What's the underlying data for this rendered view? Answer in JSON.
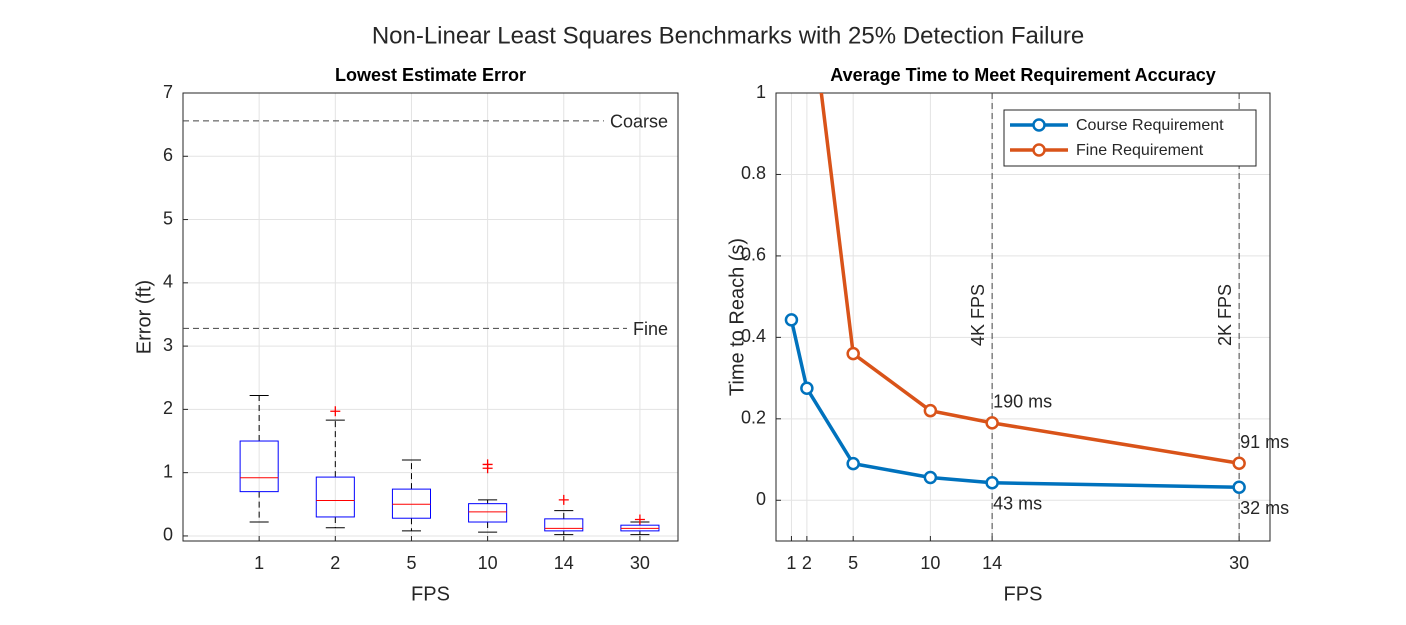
{
  "title": "Non-Linear Least Squares Benchmarks with 25% Detection Failure",
  "chart_data": [
    {
      "type": "box",
      "title": "Lowest Estimate Error",
      "x_label": "FPS",
      "y_label": "Error (ft)",
      "categories": [
        "1",
        "2",
        "5",
        "10",
        "14",
        "30"
      ],
      "boxes": [
        {
          "whisker_low": 0.22,
          "q1": 0.7,
          "median": 0.92,
          "q3": 1.5,
          "whisker_high": 2.22,
          "outliers": []
        },
        {
          "whisker_low": 0.13,
          "q1": 0.3,
          "median": 0.56,
          "q3": 0.93,
          "whisker_high": 1.83,
          "outliers": [
            1.97
          ]
        },
        {
          "whisker_low": 0.08,
          "q1": 0.28,
          "median": 0.5,
          "q3": 0.74,
          "whisker_high": 1.2,
          "outliers": []
        },
        {
          "whisker_low": 0.06,
          "q1": 0.22,
          "median": 0.38,
          "q3": 0.51,
          "whisker_high": 0.57,
          "outliers": [
            1.07,
            1.13
          ]
        },
        {
          "whisker_low": 0.02,
          "q1": 0.08,
          "median": 0.12,
          "q3": 0.27,
          "whisker_high": 0.4,
          "outliers": [
            0.57
          ]
        },
        {
          "whisker_low": 0.02,
          "q1": 0.08,
          "median": 0.12,
          "q3": 0.17,
          "whisker_high": 0.22,
          "outliers": [
            0.26
          ]
        }
      ],
      "box_color": "#0000ff",
      "median_color": "#ff0000",
      "whisker_color": "#000000",
      "outlier_color": "#ff0000",
      "hlines": [
        {
          "value": 6.56,
          "label": "Coarse"
        },
        {
          "value": 3.28,
          "label": "Fine"
        }
      ],
      "ylim": [
        -0.08,
        7
      ],
      "yticks": [
        0,
        1,
        2,
        3,
        4,
        5,
        6,
        7
      ],
      "grid": true
    },
    {
      "type": "line",
      "title": "Average Time to Meet Requirement Accuracy",
      "x_label": "FPS",
      "y_label": "Time to Reach (s)",
      "x": [
        1,
        2,
        5,
        10,
        14,
        30
      ],
      "series": [
        {
          "name": "Course Requirement",
          "color": "#0072BD",
          "values": [
            0.443,
            0.275,
            0.09,
            0.056,
            0.043,
            0.032
          ],
          "value_labels": [
            null,
            null,
            null,
            null,
            "43 ms",
            "32 ms"
          ]
        },
        {
          "name": "Fine Requirement",
          "color": "#D95319",
          "values": [
            null,
            1.29,
            0.36,
            0.22,
            0.19,
            0.091
          ],
          "value_labels": [
            null,
            null,
            null,
            null,
            "190 ms",
            "91 ms"
          ]
        }
      ],
      "vlines": [
        {
          "value": 14,
          "label": "4K FPS"
        },
        {
          "value": 30,
          "label": "2K FPS"
        }
      ],
      "xlim": [
        0,
        32
      ],
      "xticks": [
        1,
        2,
        5,
        10,
        14,
        30
      ],
      "ylim": [
        -0.1,
        1
      ],
      "yticks": [
        0,
        0.2,
        0.4,
        0.6,
        0.8,
        1
      ],
      "grid": true,
      "legend": "top-right"
    }
  ]
}
